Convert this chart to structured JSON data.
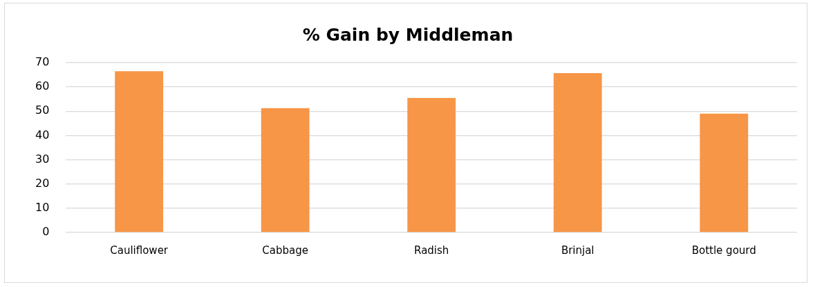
{
  "chart_data": {
    "type": "bar",
    "title": "% Gain by Middleman",
    "categories": [
      "Cauliflower",
      "Cabbage",
      "Radish",
      "Brinjal",
      "Bottle gourd"
    ],
    "values": [
      66.5,
      51.3,
      55.5,
      65.7,
      49.0
    ],
    "color": "#f79646",
    "ylim": [
      0,
      70
    ],
    "yticks": [
      0,
      10,
      20,
      30,
      40,
      50,
      60,
      70
    ],
    "grid": "y"
  }
}
